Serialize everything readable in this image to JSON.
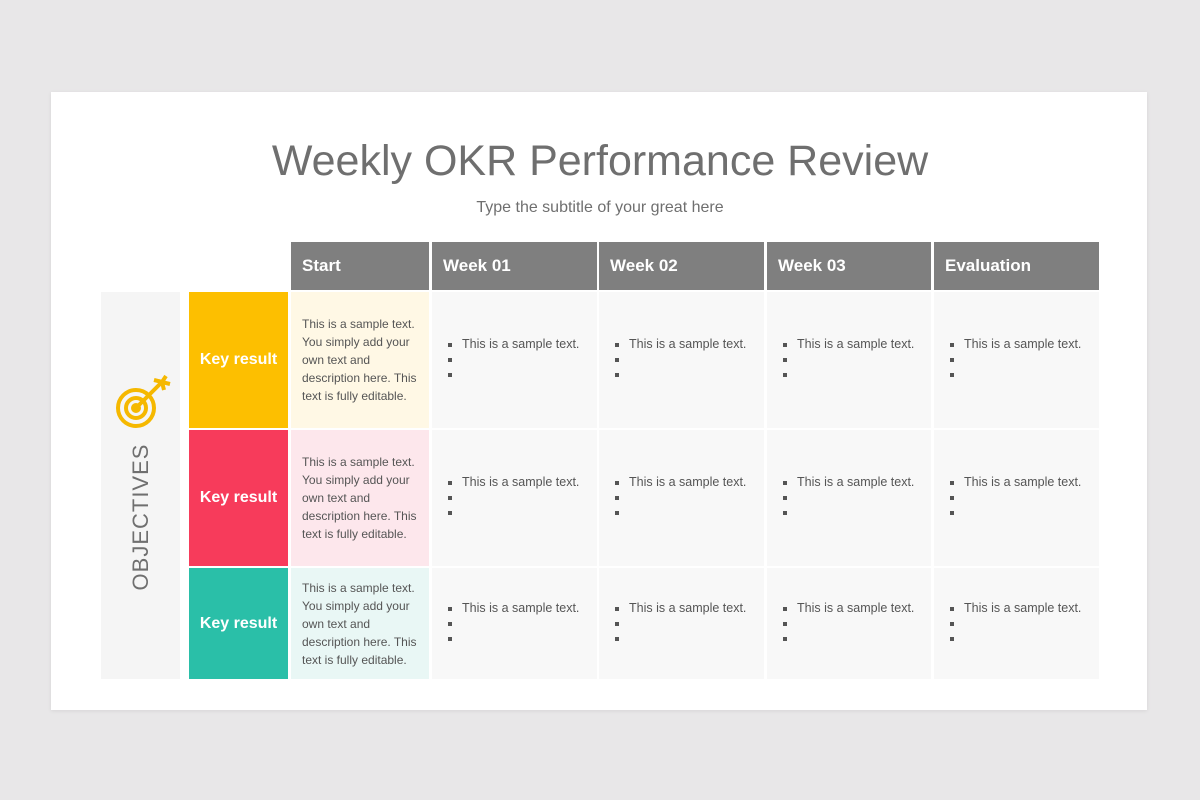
{
  "header": {
    "title": "Weekly OKR Performance Review",
    "subtitle": "Type the subtitle of your great here"
  },
  "table": {
    "columns": [
      "Start",
      "Week 01",
      "Week 02",
      "Week 03",
      "Evaluation"
    ],
    "side_label": "OBJECTIVES",
    "rows": [
      {
        "label": "Key result",
        "start": "This is a sample text. You simply add your own text and description here. This text is fully editable.",
        "cells": [
          "This is a sample text.",
          "This is a sample text.",
          "This is a sample text.",
          "This is a sample text."
        ]
      },
      {
        "label": "Key result",
        "start": "This is a sample text. You simply add your own text and description here. This text is fully editable.",
        "cells": [
          "This is a sample text.",
          "This is a sample text.",
          "This is a sample text.",
          "This is a sample text."
        ]
      },
      {
        "label": "Key result",
        "start": "This is a sample text. You simply add your own text and description here. This text is fully editable.",
        "cells": [
          "This is a sample text.",
          "This is a sample text.",
          "This is a sample text.",
          "This is a sample text."
        ]
      }
    ]
  }
}
